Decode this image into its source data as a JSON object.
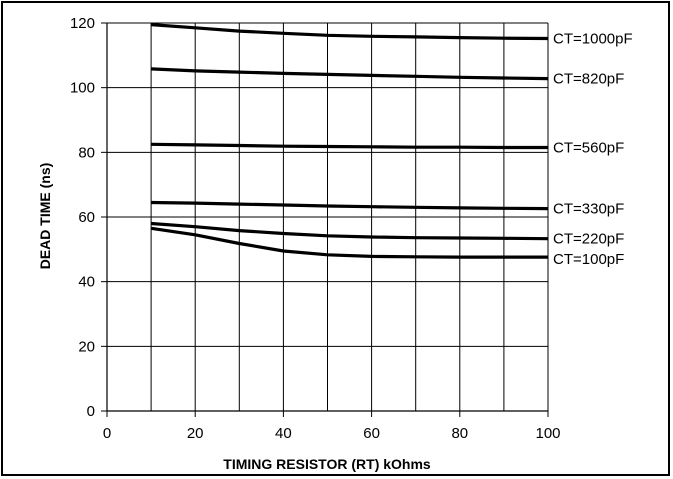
{
  "chart_data": {
    "type": "line",
    "title": "",
    "xlabel": "TIMING RESISTOR (RT) kOhms",
    "ylabel": "DEAD TIME (ns)",
    "xlim": [
      0,
      100
    ],
    "ylim": [
      0,
      120
    ],
    "x_ticks": [
      "0",
      "20",
      "40",
      "60",
      "80",
      "100"
    ],
    "y_ticks": [
      "0",
      "20",
      "40",
      "60",
      "80",
      "100",
      "120"
    ],
    "grid": true,
    "legend": "labels at right end of lines",
    "line_color": "#000000",
    "x": [
      10,
      20,
      30,
      40,
      50,
      60,
      70,
      80,
      90,
      100
    ],
    "series": [
      {
        "name": "CT=1000pF",
        "values": [
          119.5,
          118.5,
          117.5,
          116.8,
          116.2,
          115.9,
          115.7,
          115.5,
          115.3,
          115.2
        ]
      },
      {
        "name": "CT=820pF",
        "values": [
          105.8,
          105.2,
          104.8,
          104.4,
          104.1,
          103.8,
          103.5,
          103.2,
          103.0,
          102.8
        ]
      },
      {
        "name": "CT=560pF",
        "values": [
          82.5,
          82.3,
          82.1,
          81.9,
          81.8,
          81.7,
          81.6,
          81.6,
          81.5,
          81.5
        ]
      },
      {
        "name": "CT=330pF",
        "values": [
          64.5,
          64.3,
          64.0,
          63.7,
          63.4,
          63.2,
          63.0,
          62.8,
          62.7,
          62.6
        ]
      },
      {
        "name": "CT=220pF",
        "values": [
          58.0,
          57.0,
          55.8,
          54.9,
          54.2,
          53.8,
          53.6,
          53.5,
          53.4,
          53.3
        ]
      },
      {
        "name": "CT=100pF",
        "values": [
          56.5,
          54.5,
          51.8,
          49.5,
          48.3,
          47.8,
          47.7,
          47.6,
          47.6,
          47.6
        ]
      }
    ]
  }
}
